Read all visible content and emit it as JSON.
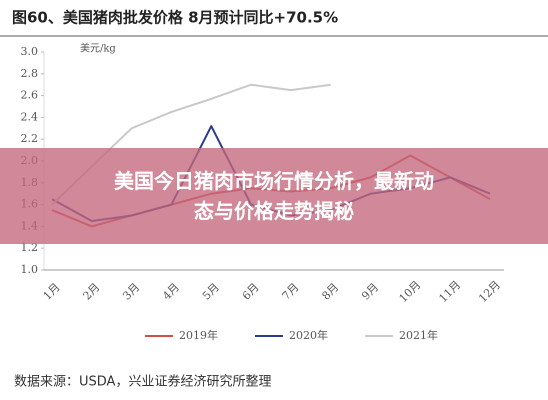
{
  "chart_data": {
    "type": "line",
    "title": "图60、美国猪肉批发价格 8月预计同比+70.5%",
    "y_unit": "美元/kg",
    "source": "数据来源：USDA，兴业证券经济研究所整理",
    "overlay_title": "美国今日猪肉市场行情分析，最新动态与价格走势揭秘",
    "categories": [
      "1月",
      "2月",
      "3月",
      "4月",
      "5月",
      "6月",
      "7月",
      "8月",
      "9月",
      "10月",
      "11月",
      "12月"
    ],
    "series": [
      {
        "name": "2019年",
        "color": "#cf4f4b",
        "values": [
          1.55,
          1.4,
          1.5,
          1.6,
          1.7,
          1.75,
          1.72,
          1.75,
          1.85,
          2.05,
          1.85,
          1.65
        ]
      },
      {
        "name": "2020年",
        "color": "#2d3c8a",
        "values": [
          1.65,
          1.45,
          1.5,
          1.6,
          2.32,
          1.6,
          1.5,
          1.55,
          1.7,
          1.75,
          1.85,
          1.7
        ]
      },
      {
        "name": "2021年",
        "color": "#c9c9c9",
        "values": [
          1.6,
          1.95,
          2.3,
          2.45,
          2.57,
          2.7,
          2.65,
          2.7,
          null,
          null,
          null,
          null
        ]
      }
    ],
    "ylim": [
      1.0,
      3.0
    ],
    "yticks": [
      {
        "value": 1.0,
        "label": "1.0"
      },
      1.2,
      1.4,
      1.6,
      1.8,
      {
        "value": 2.0,
        "label": "2.0"
      },
      2.2,
      2.4,
      2.6,
      2.8,
      {
        "value": 3.0,
        "label": "3.0"
      }
    ]
  }
}
